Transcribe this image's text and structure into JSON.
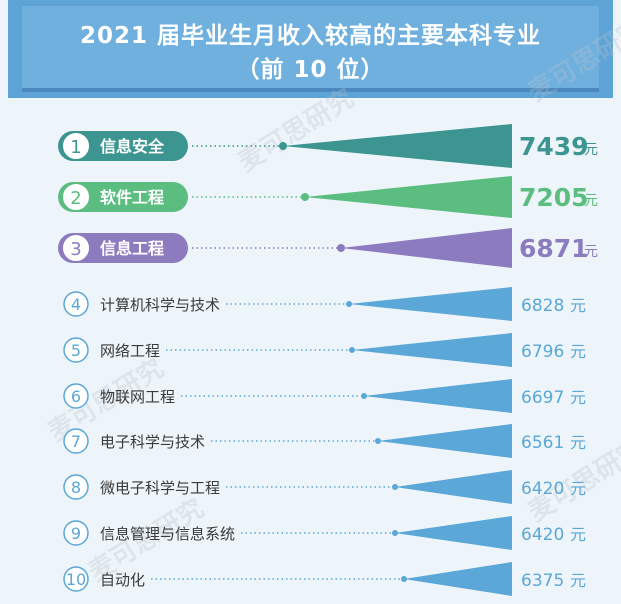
{
  "header": {
    "title_line1": "2021 届毕业生月收入较高的主要本科专业",
    "title_line2": "（前 10 位）"
  },
  "watermark": "麦可思研究",
  "colors": {
    "rank1": "#3c9590",
    "rank2": "#5bbd7f",
    "rank3": "#8d7bc0",
    "others": "#5aa7d8",
    "value_text_other": "#5aa7d8",
    "label_text": "#3a3a3a"
  },
  "chart_data": {
    "type": "bar",
    "unit": "元",
    "categories": [
      "信息安全",
      "软件工程",
      "信息工程",
      "计算机科学与技术",
      "网络工程",
      "物联网工程",
      "电子科学与技术",
      "微电子科学与工程",
      "信息管理与信息系统",
      "自动化"
    ],
    "ranks": [
      "1",
      "2",
      "3",
      "4",
      "5",
      "6",
      "7",
      "8",
      "9",
      "10"
    ],
    "values": [
      7439,
      7205,
      6871,
      6828,
      6796,
      6697,
      6561,
      6420,
      6420,
      6375
    ],
    "value_labels": [
      "7439",
      "7205",
      "6871",
      "6828",
      "6796",
      "6697",
      "6561",
      "6420",
      "6420",
      "6375"
    ]
  }
}
